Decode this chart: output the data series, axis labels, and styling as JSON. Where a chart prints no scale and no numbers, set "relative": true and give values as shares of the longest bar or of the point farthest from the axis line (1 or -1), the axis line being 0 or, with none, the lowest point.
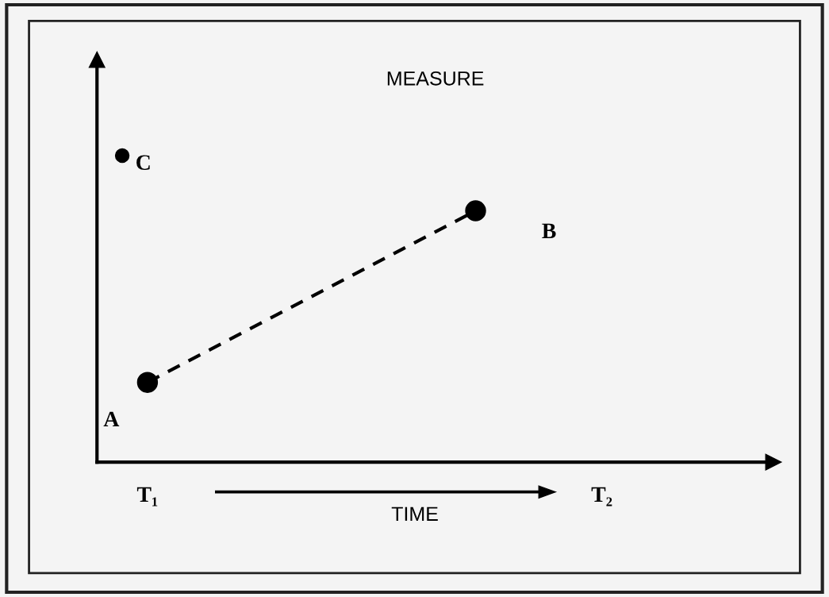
{
  "chart_data": {
    "type": "scatter",
    "relative": true,
    "ylabel": "MEASURE",
    "xlabel": "TIME",
    "categories": [
      null,
      "T₁",
      null,
      null,
      null,
      null,
      null,
      null,
      null,
      null,
      null,
      null,
      null,
      null,
      null,
      null,
      null,
      null,
      null,
      "T₂",
      null,
      null,
      null,
      null,
      null,
      null
    ],
    "tick_labels": "x",
    "grid": false,
    "legend": false,
    "series": [
      {
        "type": "line",
        "values": [
          null,
          0.26,
          null,
          null,
          null,
          null,
          null,
          null,
          null,
          null,
          null,
          null,
          null,
          null,
          0.82,
          null,
          null,
          null,
          null,
          null,
          null,
          null,
          null,
          null,
          null,
          null
        ],
        "color": "#000000",
        "line_style": "dashed",
        "marker": "circle"
      },
      {
        "values": [
          1.0,
          null,
          null,
          null,
          null,
          null,
          null,
          null,
          null,
          null,
          null,
          null,
          null,
          null,
          null,
          null,
          null,
          null,
          null,
          null,
          null,
          null,
          null,
          null,
          null,
          null
        ],
        "color": "#000000",
        "marker": "circle"
      }
    ],
    "annotations": [
      "A",
      "B",
      "C"
    ]
  }
}
